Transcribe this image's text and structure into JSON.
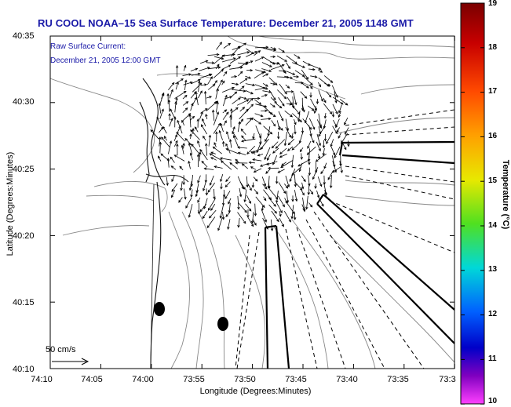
{
  "title": "RU COOL  NOAA–15  Sea Surface Temperature:  December 21, 2005 1148 GMT",
  "current_label": "Raw Surface Current:",
  "current_time": "December 21, 2005 12:00 GMT",
  "axes": {
    "xlabel": "Longitude (Degrees:Minutes)",
    "ylabel": "Latitude (Degrees:Minutes)",
    "xticks": [
      "74:10",
      "74:05",
      "74:00",
      "73:55",
      "73:50",
      "73:45",
      "73:40",
      "73:35",
      "73:3"
    ],
    "yticks": [
      "40:35",
      "40:30",
      "40:25",
      "40:20",
      "40:15",
      "40:10"
    ]
  },
  "colorbar": {
    "label": "Temperature (°C)",
    "ticks": [
      "19",
      "18",
      "17",
      "16",
      "15",
      "14",
      "13",
      "12",
      "11",
      "10"
    ],
    "min": 10,
    "max": 19
  },
  "scale_vector": {
    "label": "50 cm/s"
  }
}
